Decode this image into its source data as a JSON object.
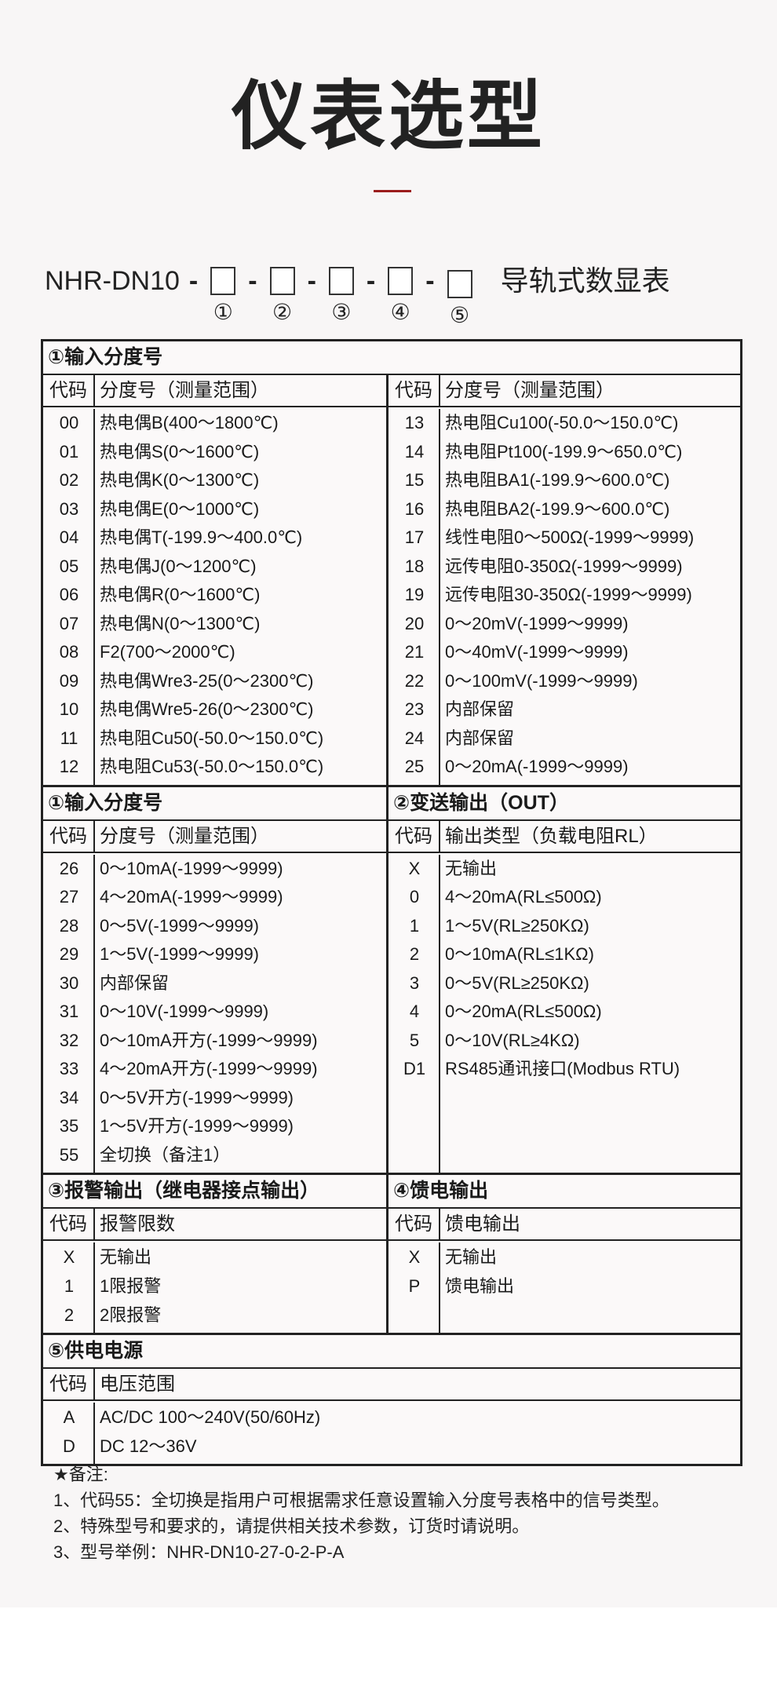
{
  "title": "仪表选型",
  "model": {
    "prefix": "NHR-DN10",
    "dash": "-",
    "slots": [
      "①",
      "②",
      "③",
      "④",
      "⑤"
    ],
    "suffix": "导轨式数显表"
  },
  "col_code": "代码",
  "sections": {
    "s1a": {
      "title": "①输入分度号",
      "col_desc": "分度号（测量范围）",
      "left": [
        [
          "00",
          "热电偶B(400～1800℃)"
        ],
        [
          "01",
          "热电偶S(0～1600℃)"
        ],
        [
          "02",
          "热电偶K(0～1300℃)"
        ],
        [
          "03",
          "热电偶E(0～1000℃)"
        ],
        [
          "04",
          "热电偶T(-199.9～400.0℃)"
        ],
        [
          "05",
          "热电偶J(0～1200℃)"
        ],
        [
          "06",
          "热电偶R(0～1600℃)"
        ],
        [
          "07",
          "热电偶N(0～1300℃)"
        ],
        [
          "08",
          "F2(700～2000℃)"
        ],
        [
          "09",
          "热电偶Wre3-25(0～2300℃)"
        ],
        [
          "10",
          "热电偶Wre5-26(0～2300℃)"
        ],
        [
          "11",
          "热电阻Cu50(-50.0～150.0℃)"
        ],
        [
          "12",
          "热电阻Cu53(-50.0～150.0℃)"
        ]
      ],
      "right": [
        [
          "13",
          "热电阻Cu100(-50.0～150.0℃)"
        ],
        [
          "14",
          "热电阻Pt100(-199.9～650.0℃)"
        ],
        [
          "15",
          "热电阻BA1(-199.9～600.0℃)"
        ],
        [
          "16",
          "热电阻BA2(-199.9～600.0℃)"
        ],
        [
          "17",
          "线性电阻0～500Ω(-1999～9999)"
        ],
        [
          "18",
          "远传电阻0-350Ω(-1999～9999)"
        ],
        [
          "19",
          "远传电阻30-350Ω(-1999～9999)"
        ],
        [
          "20",
          "0～20mV(-1999～9999)"
        ],
        [
          "21",
          "0～40mV(-1999～9999)"
        ],
        [
          "22",
          "0～100mV(-1999～9999)"
        ],
        [
          "23",
          "内部保留"
        ],
        [
          "24",
          "内部保留"
        ],
        [
          "25",
          "0～20mA(-1999～9999)"
        ]
      ]
    },
    "s1b": {
      "title": "①输入分度号",
      "col_desc": "分度号（测量范围）",
      "rows": [
        [
          "26",
          "0～10mA(-1999～9999)"
        ],
        [
          "27",
          "4～20mA(-1999～9999)"
        ],
        [
          "28",
          "0～5V(-1999～9999)"
        ],
        [
          "29",
          "1～5V(-1999～9999)"
        ],
        [
          "30",
          "内部保留"
        ],
        [
          "31",
          "0～10V(-1999～9999)"
        ],
        [
          "32",
          "0～10mA开方(-1999～9999)"
        ],
        [
          "33",
          "4～20mA开方(-1999～9999)"
        ],
        [
          "34",
          "0～5V开方(-1999～9999)"
        ],
        [
          "35",
          "1～5V开方(-1999～9999)"
        ],
        [
          "55",
          "全切换（备注1）"
        ]
      ]
    },
    "s2": {
      "title": "②变送输出（OUT）",
      "col_desc": "输出类型（负载电阻RL）",
      "rows": [
        [
          "X",
          "无输出"
        ],
        [
          "0",
          "4～20mA(RL≤500Ω)"
        ],
        [
          "1",
          "1～5V(RL≥250KΩ)"
        ],
        [
          "2",
          "0～10mA(RL≤1KΩ)"
        ],
        [
          "3",
          "0～5V(RL≥250KΩ)"
        ],
        [
          "4",
          "0～20mA(RL≤500Ω)"
        ],
        [
          "5",
          "0～10V(RL≥4KΩ)"
        ],
        [
          "D1",
          "RS485通讯接口(Modbus RTU)"
        ]
      ]
    },
    "s3": {
      "title": "③报警输出（继电器接点输出）",
      "col_desc": "报警限数",
      "rows": [
        [
          "X",
          "无输出"
        ],
        [
          "1",
          "1限报警"
        ],
        [
          "2",
          "2限报警"
        ]
      ]
    },
    "s4": {
      "title": "④馈电输出",
      "col_desc": "馈电输出",
      "rows": [
        [
          "X",
          "无输出"
        ],
        [
          "P",
          "馈电输出"
        ]
      ]
    },
    "s5": {
      "title": "⑤供电电源",
      "col_desc": "电压范围",
      "rows": [
        [
          "A",
          "AC/DC 100～240V(50/60Hz)"
        ],
        [
          "D",
          "DC 12～36V"
        ]
      ]
    }
  },
  "notes": {
    "heading": "★备注:",
    "items": [
      "1、代码55：全切换是指用户可根据需求任意设置输入分度号表格中的信号类型。",
      "2、特殊型号和要求的，请提供相关技术参数，订货时请说明。",
      "3、型号举例：NHR-DN10-27-0-2-P-A"
    ]
  },
  "colors": {
    "accent_line": "#9b1c1c",
    "border": "#222222",
    "page_bg": "#f8f6f6"
  }
}
